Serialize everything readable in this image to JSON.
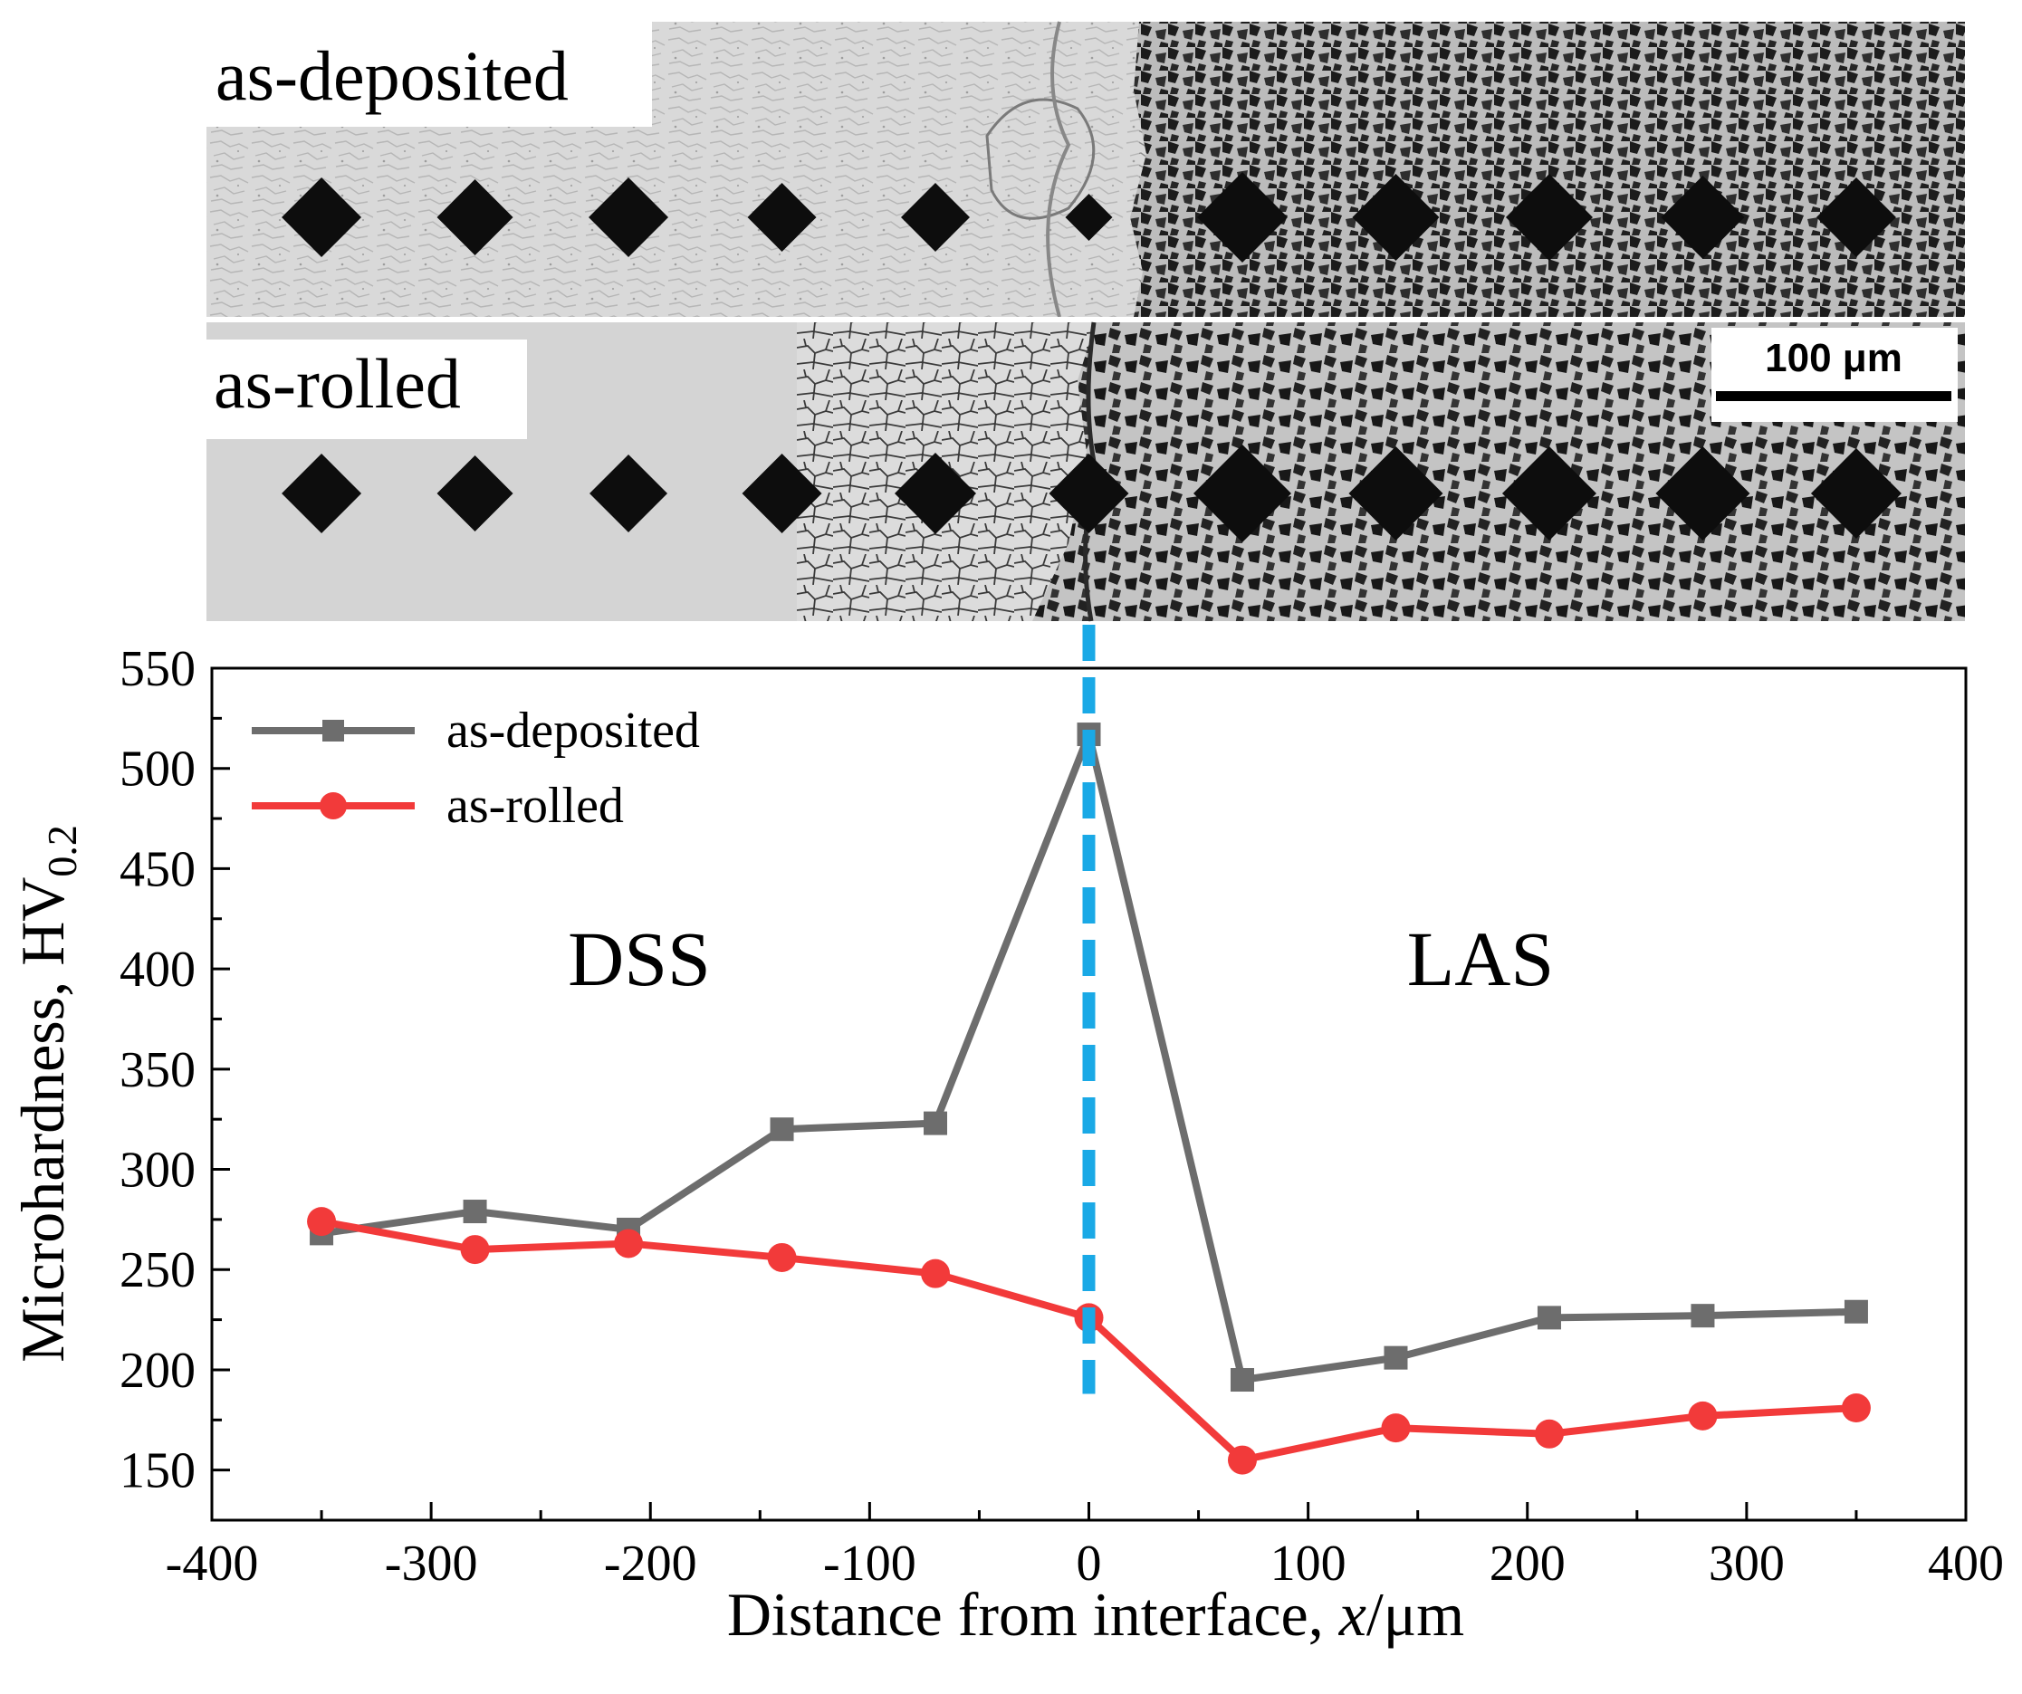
{
  "micrographs": {
    "top_label": "as-deposited",
    "bottom_label": "as-rolled",
    "scale_bar_label": "100 μm"
  },
  "chart_data": {
    "type": "line",
    "xlabel_prefix": "Distance from interface, ",
    "xlabel_var": "x",
    "xlabel_suffix": "/μm",
    "ylabel_main": "Microhardness, HV",
    "ylabel_sub": "0.2",
    "xlim": [
      -400,
      400
    ],
    "ylim": [
      125,
      550
    ],
    "x_ticks": [
      -400,
      -300,
      -200,
      -100,
      0,
      100,
      200,
      300,
      400
    ],
    "y_ticks": [
      150,
      200,
      250,
      300,
      350,
      400,
      450,
      500,
      550
    ],
    "annotations": {
      "left_region": "DSS",
      "right_region": "LAS"
    },
    "interface_x": 0,
    "series": [
      {
        "name": "as-deposited",
        "color": "#6d6d6d",
        "marker": "square",
        "x": [
          -350,
          -280,
          -210,
          -140,
          -70,
          0,
          70,
          140,
          210,
          280,
          350
        ],
        "y": [
          268,
          279,
          270,
          320,
          323,
          517,
          195,
          206,
          226,
          227,
          229
        ]
      },
      {
        "name": "as-rolled",
        "color": "#f23a3a",
        "marker": "circle",
        "x": [
          -350,
          -280,
          -210,
          -140,
          -70,
          0,
          70,
          140,
          210,
          280,
          350
        ],
        "y": [
          274,
          260,
          263,
          256,
          248,
          226,
          155,
          171,
          168,
          177,
          181
        ]
      }
    ],
    "interface_color": "#1aa9e6"
  }
}
